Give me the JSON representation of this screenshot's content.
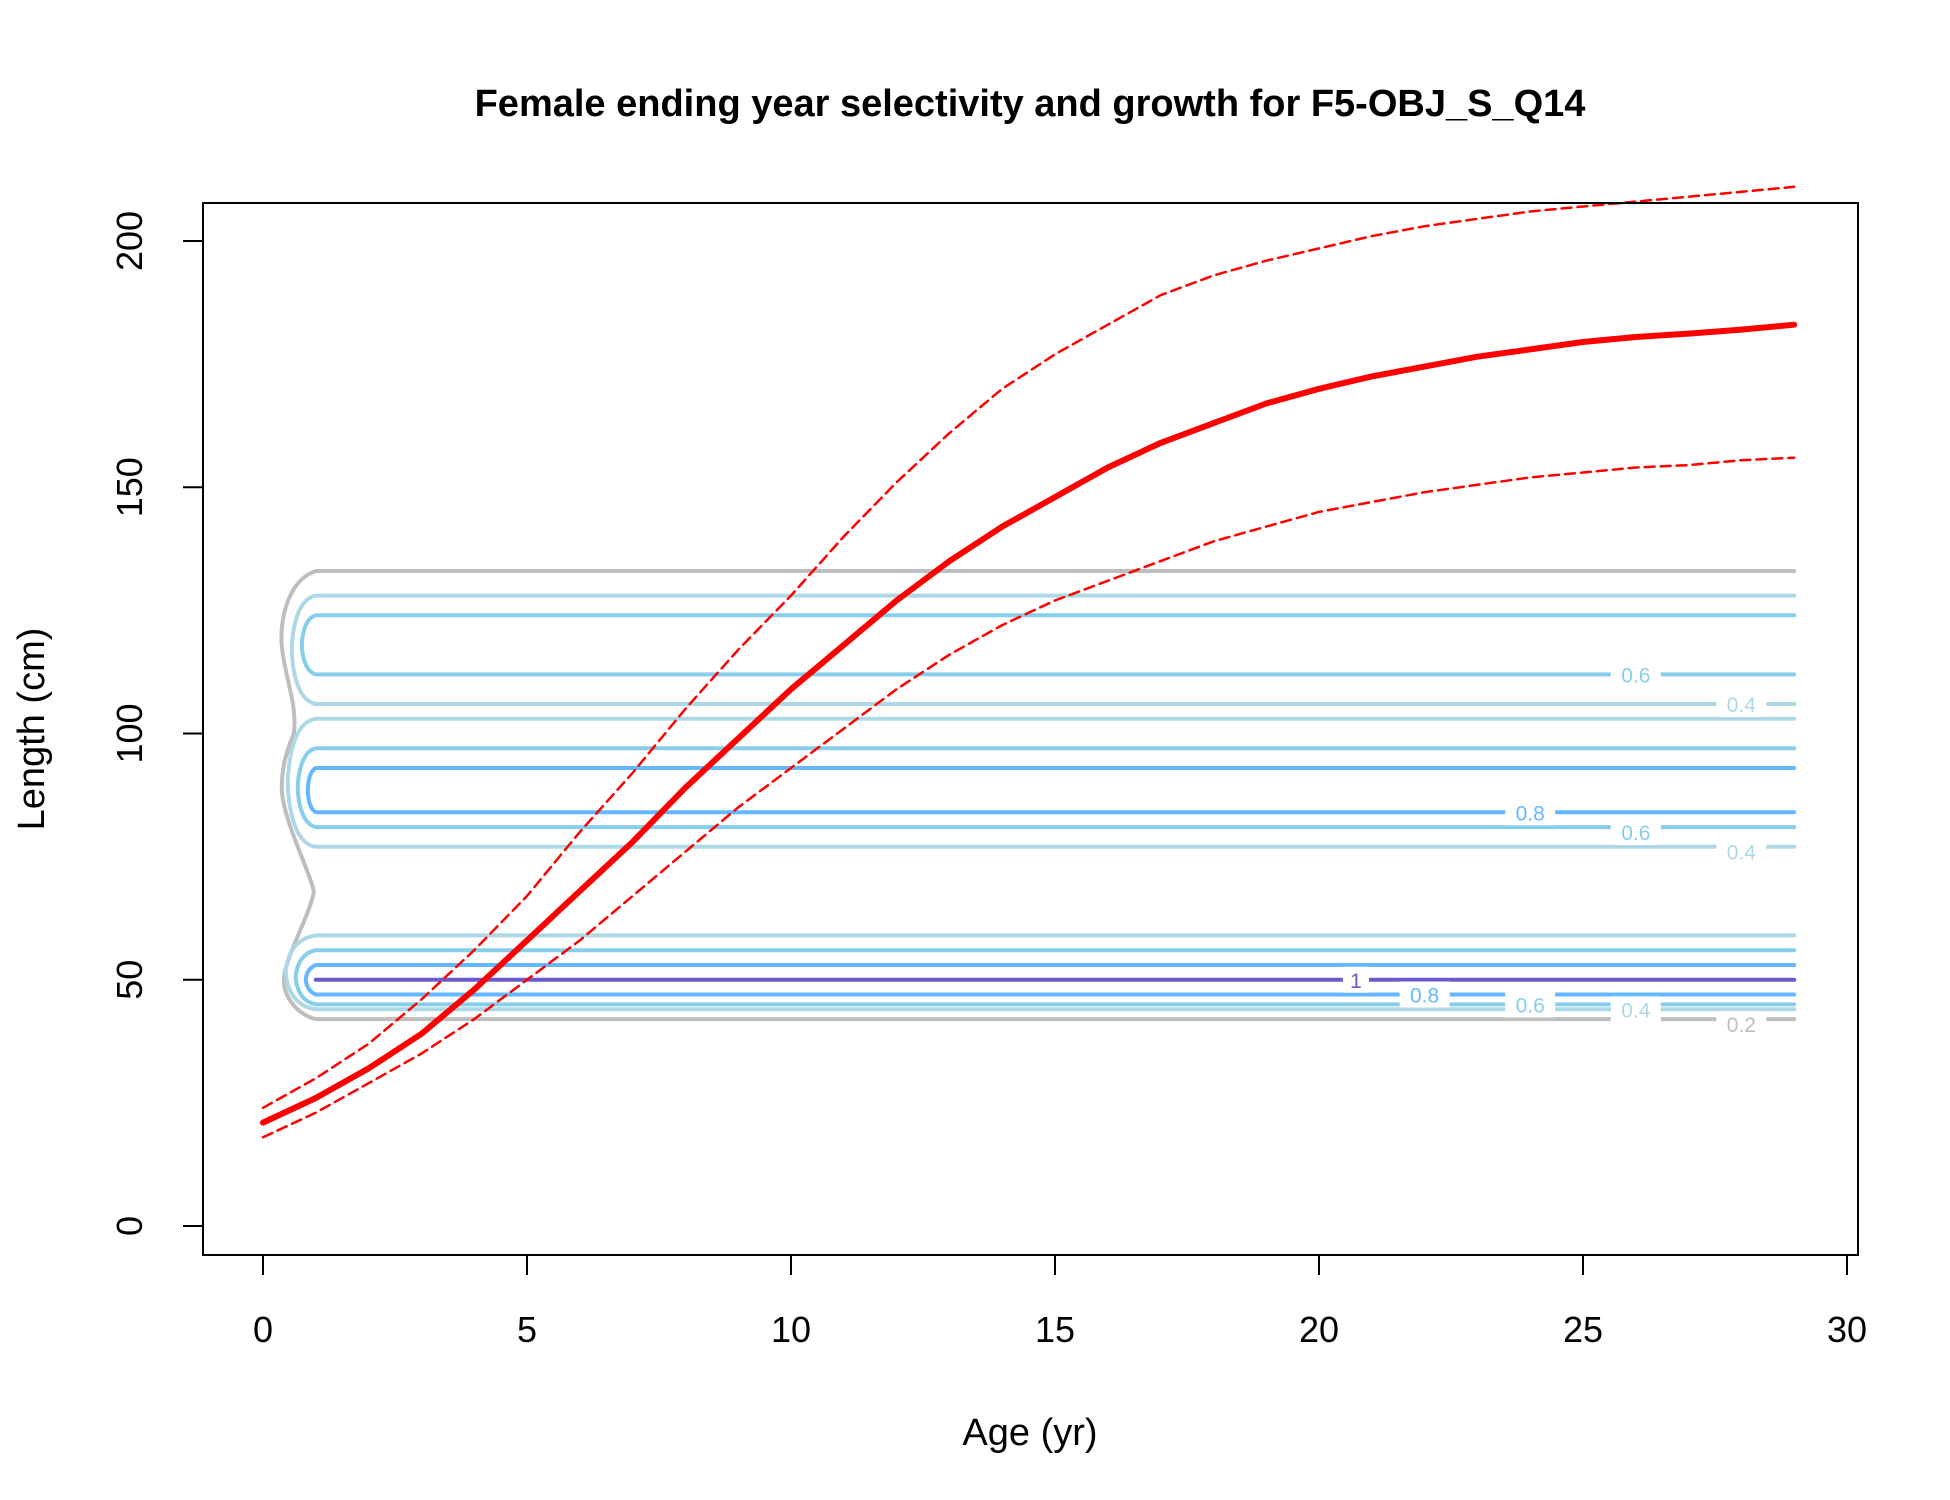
{
  "chart_data": {
    "type": "line",
    "title": "Female ending year selectivity and growth for F5-OBJ_S_Q14",
    "xlabel": "Age (yr)",
    "ylabel": "Length (cm)",
    "xlim": [
      0,
      30
    ],
    "ylim": [
      0,
      200
    ],
    "x_ticks": [
      0,
      5,
      10,
      15,
      20,
      25,
      30
    ],
    "y_ticks": [
      0,
      50,
      100,
      150,
      200
    ],
    "grid": false,
    "colors": {
      "growth": "#ff0000",
      "c0_2": "#bebebe",
      "c0_4": "#add8e6",
      "c0_6": "#87ceeb",
      "c0_8": "#63b8ff",
      "c1": "#6a5acd"
    },
    "series": [
      {
        "name": "",
        "style": "solid-thick",
        "x": [
          0,
          1,
          2,
          3,
          4,
          5,
          6,
          7,
          8,
          9,
          10,
          11,
          12,
          13,
          14,
          15,
          16,
          17,
          18,
          19,
          20,
          21,
          22,
          23,
          24,
          25,
          26,
          27,
          28,
          29
        ],
        "y": [
          21,
          26,
          32,
          39,
          48,
          58,
          68,
          78,
          89,
          99,
          109,
          118,
          127,
          135,
          142,
          148,
          154,
          159,
          163,
          167,
          170,
          172.5,
          174.5,
          176.5,
          178,
          179.5,
          180.5,
          181.2,
          182,
          183
        ]
      },
      {
        "name": "",
        "style": "dashed",
        "x": [
          0,
          1,
          2,
          3,
          4,
          5,
          6,
          7,
          8,
          9,
          10,
          11,
          12,
          13,
          14,
          15,
          16,
          17,
          18,
          19,
          20,
          21,
          22,
          23,
          24,
          25,
          26,
          27,
          28,
          29
        ],
        "y": [
          24,
          30,
          37,
          46,
          56,
          67,
          80,
          92,
          105,
          117,
          128,
          140,
          151,
          161,
          170,
          177,
          183,
          189,
          193,
          196,
          198.5,
          201,
          203,
          204.5,
          206,
          207,
          208,
          209,
          210,
          211
        ]
      },
      {
        "name": "",
        "style": "dashed",
        "x": [
          0,
          1,
          2,
          3,
          4,
          5,
          6,
          7,
          8,
          9,
          10,
          11,
          12,
          13,
          14,
          15,
          16,
          17,
          18,
          19,
          20,
          21,
          22,
          23,
          24,
          25,
          26,
          27,
          28,
          29
        ],
        "y": [
          18,
          23,
          29,
          35,
          42,
          50,
          58,
          67,
          76,
          85,
          93,
          101,
          109,
          116,
          122,
          127,
          131,
          135,
          139,
          142,
          145,
          147,
          149,
          150.5,
          152,
          153,
          154,
          154.5,
          155.5,
          156
        ]
      }
    ],
    "contours": {
      "x_start": 1,
      "x_end": 29,
      "levels": [
        {
          "level": 0.2,
          "label": "0.2",
          "color": "#bebebe",
          "lines": [
            133,
            42
          ],
          "label_x": 28,
          "label_y": 41,
          "width": 4
        },
        {
          "level": 0.4,
          "label": "0.4",
          "color": "#add8e6",
          "lines": [
            128,
            103,
            106,
            77,
            59,
            44
          ],
          "label_x": 28,
          "label_y": 76,
          "width": 4
        },
        {
          "level": 0.6,
          "label": "0.6",
          "color": "#87ceeb",
          "lines": [
            124,
            112,
            97,
            81,
            56,
            45
          ],
          "label_x": 26,
          "label_y": 80,
          "width": 4
        },
        {
          "level": 0.8,
          "label": "0.8",
          "color": "#63b8ff",
          "lines": [
            93,
            84,
            53,
            47
          ],
          "label_x": 24,
          "label_y": 84,
          "width": 4
        },
        {
          "level": 1,
          "label": "1",
          "color": "#6a5acd",
          "lines": [
            50
          ],
          "label_x": 20.7,
          "label_y": 50,
          "width": 4
        }
      ],
      "extra_labels": [
        {
          "label": "0.6",
          "color": "#87ceeb",
          "x": 26,
          "y": 112
        },
        {
          "label": "0.4",
          "color": "#add8e6",
          "x": 28,
          "y": 106
        },
        {
          "label": "0.8",
          "color": "#63b8ff",
          "x": 22,
          "y": 47
        },
        {
          "label": "0.6",
          "color": "#87ceeb",
          "x": 24,
          "y": 45
        },
        {
          "label": "0.4",
          "color": "#add8e6",
          "x": 26,
          "y": 44
        }
      ]
    }
  }
}
